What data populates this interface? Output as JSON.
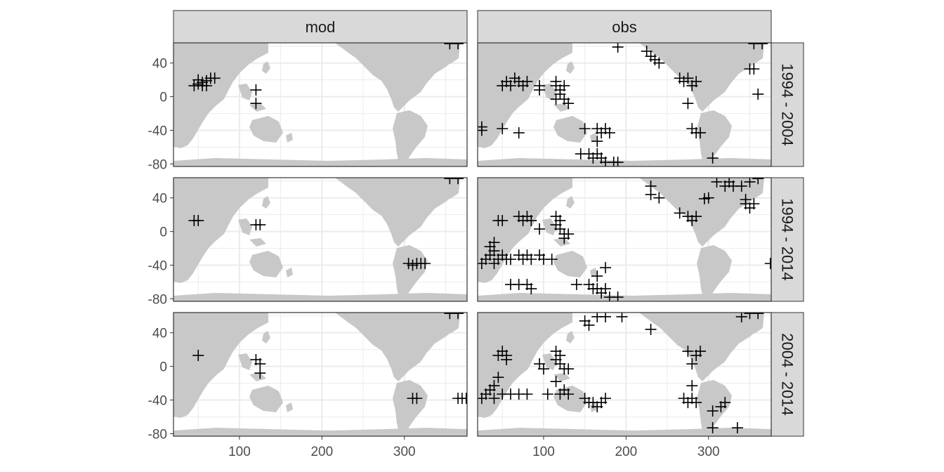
{
  "chart_data": {
    "type": "scatter",
    "marker": "plus",
    "columns": [
      "mod",
      "obs"
    ],
    "rows": [
      "1994 - 2004",
      "1994 - 2014",
      "2004 - 2014"
    ],
    "xlim": [
      20,
      376
    ],
    "ylim": [
      -83,
      64
    ],
    "x_ticks": [
      100,
      200,
      300
    ],
    "y_ticks": [
      40,
      0,
      -40,
      -80
    ],
    "grid": true,
    "colors": {
      "land": "#c8c8c8",
      "ocean": "#ffffff",
      "grid": "#ebebeb",
      "strip": "#d9d9d9",
      "marker": "#000000",
      "text": "#4d4d4d"
    },
    "panels": [
      {
        "column": "mod",
        "row": "1994 - 2004",
        "points": [
          [
            45,
            13
          ],
          [
            50,
            15
          ],
          [
            55,
            17
          ],
          [
            60,
            19
          ],
          [
            65,
            22
          ],
          [
            70,
            22
          ],
          [
            50,
            20
          ],
          [
            55,
            13
          ],
          [
            60,
            13
          ],
          [
            120,
            8
          ],
          [
            120,
            -8
          ],
          [
            355,
            63
          ],
          [
            365,
            63
          ]
        ]
      },
      {
        "column": "obs",
        "row": "1994 - 2004",
        "points": [
          [
            25,
            -36
          ],
          [
            25,
            -40
          ],
          [
            50,
            -38
          ],
          [
            70,
            -43
          ],
          [
            50,
            13
          ],
          [
            55,
            18
          ],
          [
            60,
            13
          ],
          [
            65,
            22
          ],
          [
            70,
            18
          ],
          [
            75,
            13
          ],
          [
            80,
            18
          ],
          [
            95,
            13
          ],
          [
            95,
            8
          ],
          [
            115,
            18
          ],
          [
            115,
            13
          ],
          [
            120,
            8
          ],
          [
            120,
            3
          ],
          [
            125,
            13
          ],
          [
            125,
            -3
          ],
          [
            130,
            -8
          ],
          [
            115,
            -3
          ],
          [
            150,
            -38
          ],
          [
            165,
            -38
          ],
          [
            170,
            -43
          ],
          [
            175,
            -38
          ],
          [
            180,
            -43
          ],
          [
            165,
            -53
          ],
          [
            145,
            -68
          ],
          [
            155,
            -68
          ],
          [
            160,
            -73
          ],
          [
            165,
            -68
          ],
          [
            170,
            -73
          ],
          [
            175,
            -78
          ],
          [
            185,
            -78
          ],
          [
            190,
            -78
          ],
          [
            190,
            59
          ],
          [
            225,
            54
          ],
          [
            230,
            48
          ],
          [
            235,
            44
          ],
          [
            240,
            40
          ],
          [
            265,
            22
          ],
          [
            270,
            18
          ],
          [
            275,
            22
          ],
          [
            280,
            13
          ],
          [
            285,
            18
          ],
          [
            275,
            -8
          ],
          [
            280,
            -38
          ],
          [
            285,
            -43
          ],
          [
            290,
            -43
          ],
          [
            305,
            -73
          ],
          [
            355,
            63
          ],
          [
            365,
            63
          ],
          [
            350,
            33
          ],
          [
            355,
            33
          ],
          [
            360,
            3
          ]
        ]
      },
      {
        "column": "mod",
        "row": "1994 - 2014",
        "points": [
          [
            45,
            13
          ],
          [
            50,
            13
          ],
          [
            120,
            8
          ],
          [
            125,
            8
          ],
          [
            305,
            -38
          ],
          [
            310,
            -40
          ],
          [
            315,
            -38
          ],
          [
            320,
            -38
          ],
          [
            325,
            -38
          ],
          [
            355,
            63
          ],
          [
            365,
            63
          ]
        ]
      },
      {
        "column": "obs",
        "row": "1994 - 2014",
        "points": [
          [
            25,
            -38
          ],
          [
            30,
            -33
          ],
          [
            35,
            -28
          ],
          [
            40,
            -23
          ],
          [
            40,
            -38
          ],
          [
            45,
            -33
          ],
          [
            50,
            -28
          ],
          [
            55,
            -33
          ],
          [
            60,
            -33
          ],
          [
            70,
            -28
          ],
          [
            75,
            -33
          ],
          [
            80,
            -28
          ],
          [
            85,
            -33
          ],
          [
            95,
            -28
          ],
          [
            100,
            -33
          ],
          [
            110,
            -33
          ],
          [
            35,
            -18
          ],
          [
            40,
            -13
          ],
          [
            45,
            13
          ],
          [
            50,
            13
          ],
          [
            60,
            -63
          ],
          [
            70,
            -63
          ],
          [
            80,
            -63
          ],
          [
            85,
            -68
          ],
          [
            70,
            18
          ],
          [
            75,
            13
          ],
          [
            80,
            18
          ],
          [
            85,
            13
          ],
          [
            95,
            3
          ],
          [
            115,
            18
          ],
          [
            115,
            8
          ],
          [
            120,
            13
          ],
          [
            120,
            3
          ],
          [
            125,
            -3
          ],
          [
            130,
            -3
          ],
          [
            125,
            -8
          ],
          [
            140,
            -63
          ],
          [
            155,
            -63
          ],
          [
            160,
            -68
          ],
          [
            165,
            -68
          ],
          [
            170,
            -73
          ],
          [
            175,
            -68
          ],
          [
            180,
            -78
          ],
          [
            190,
            -78
          ],
          [
            165,
            -53
          ],
          [
            175,
            -43
          ],
          [
            230,
            54
          ],
          [
            230,
            44
          ],
          [
            240,
            40
          ],
          [
            265,
            22
          ],
          [
            275,
            18
          ],
          [
            280,
            13
          ],
          [
            285,
            18
          ],
          [
            295,
            39
          ],
          [
            300,
            40
          ],
          [
            310,
            59
          ],
          [
            320,
            54
          ],
          [
            325,
            59
          ],
          [
            330,
            54
          ],
          [
            340,
            54
          ],
          [
            350,
            59
          ],
          [
            360,
            63
          ],
          [
            345,
            33
          ],
          [
            350,
            28
          ],
          [
            355,
            33
          ],
          [
            345,
            38
          ],
          [
            375,
            -38
          ]
        ]
      },
      {
        "column": "mod",
        "row": "2004 - 2014",
        "points": [
          [
            50,
            13
          ],
          [
            120,
            8
          ],
          [
            125,
            3
          ],
          [
            125,
            -8
          ],
          [
            310,
            -38
          ],
          [
            315,
            -38
          ],
          [
            365,
            -38
          ],
          [
            370,
            -38
          ],
          [
            375,
            -38
          ],
          [
            355,
            63
          ],
          [
            365,
            63
          ]
        ]
      },
      {
        "column": "obs",
        "row": "2004 - 2014",
        "points": [
          [
            25,
            -38
          ],
          [
            30,
            -33
          ],
          [
            35,
            -28
          ],
          [
            40,
            -23
          ],
          [
            45,
            -13
          ],
          [
            40,
            -38
          ],
          [
            50,
            -33
          ],
          [
            60,
            -33
          ],
          [
            70,
            -33
          ],
          [
            80,
            -33
          ],
          [
            45,
            13
          ],
          [
            50,
            18
          ],
          [
            55,
            13
          ],
          [
            55,
            8
          ],
          [
            95,
            3
          ],
          [
            100,
            -3
          ],
          [
            105,
            -33
          ],
          [
            115,
            18
          ],
          [
            115,
            8
          ],
          [
            120,
            13
          ],
          [
            120,
            3
          ],
          [
            125,
            -3
          ],
          [
            130,
            -3
          ],
          [
            115,
            -18
          ],
          [
            120,
            -33
          ],
          [
            125,
            -28
          ],
          [
            130,
            -33
          ],
          [
            150,
            -38
          ],
          [
            155,
            -43
          ],
          [
            160,
            -43
          ],
          [
            165,
            -48
          ],
          [
            170,
            -43
          ],
          [
            175,
            -38
          ],
          [
            150,
            54
          ],
          [
            155,
            49
          ],
          [
            165,
            59
          ],
          [
            175,
            59
          ],
          [
            195,
            59
          ],
          [
            230,
            44
          ],
          [
            275,
            18
          ],
          [
            280,
            3
          ],
          [
            285,
            13
          ],
          [
            290,
            18
          ],
          [
            280,
            -23
          ],
          [
            270,
            -38
          ],
          [
            275,
            -43
          ],
          [
            280,
            -38
          ],
          [
            285,
            -43
          ],
          [
            305,
            -53
          ],
          [
            315,
            -48
          ],
          [
            320,
            -43
          ],
          [
            305,
            -73
          ],
          [
            335,
            -73
          ],
          [
            340,
            59
          ],
          [
            350,
            63
          ],
          [
            360,
            63
          ]
        ]
      }
    ]
  }
}
